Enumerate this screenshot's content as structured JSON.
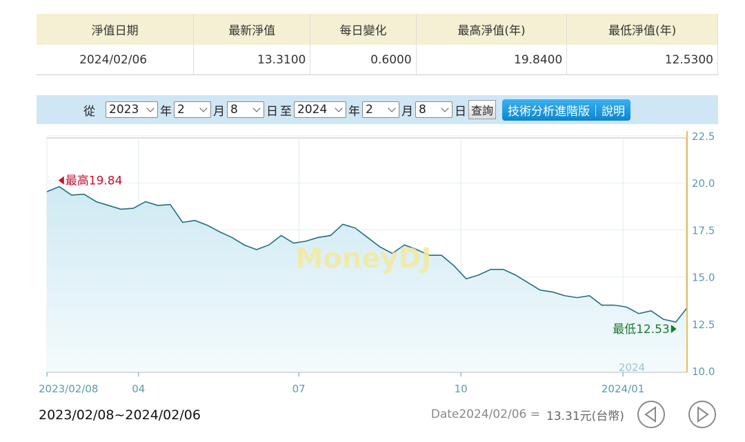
{
  "table": {
    "headers": [
      "淨值日期",
      "最新淨值",
      "每日變化",
      "最高淨值(年)",
      "最低淨值(年)"
    ],
    "row": [
      "2024/02/06",
      "13.3100",
      "0.6000",
      "19.8400",
      "12.5300"
    ]
  },
  "form": {
    "from_label": "從",
    "from_year": "2023",
    "year_label": "年",
    "from_month": "2",
    "month_label": "月",
    "from_day": "8",
    "day_label": "日",
    "to_label": "至",
    "to_year": "2024",
    "to_month": "2",
    "to_day": "8",
    "query": "查詢",
    "advanced": "技術分析進階版｜說明"
  },
  "chart_data": {
    "type": "line",
    "color": "#1f6f80",
    "x": [
      "2023/02/08",
      "2023/02/15",
      "2023/02/22",
      "2023/03/01",
      "2023/03/08",
      "2023/03/15",
      "2023/03/22",
      "2023/03/29",
      "2023/04/05",
      "2023/04/12",
      "2023/04/19",
      "2023/04/26",
      "2023/05/03",
      "2023/05/10",
      "2023/05/17",
      "2023/05/24",
      "2023/05/31",
      "2023/06/07",
      "2023/06/14",
      "2023/06/21",
      "2023/06/28",
      "2023/07/05",
      "2023/07/12",
      "2023/07/19",
      "2023/07/26",
      "2023/08/02",
      "2023/08/09",
      "2023/08/16",
      "2023/08/23",
      "2023/08/30",
      "2023/09/06",
      "2023/09/13",
      "2023/09/20",
      "2023/09/27",
      "2023/10/04",
      "2023/10/11",
      "2023/10/18",
      "2023/10/25",
      "2023/11/01",
      "2023/11/08",
      "2023/11/15",
      "2023/11/22",
      "2023/11/29",
      "2023/12/06",
      "2023/12/13",
      "2023/12/20",
      "2023/12/27",
      "2024/01/03",
      "2024/01/10",
      "2024/01/17",
      "2024/01/24",
      "2024/01/31",
      "2024/02/06"
    ],
    "values": [
      19.53,
      19.8,
      19.35,
      19.4,
      19.0,
      18.8,
      18.6,
      18.65,
      19.0,
      18.8,
      18.85,
      17.9,
      18.0,
      17.75,
      17.4,
      17.1,
      16.7,
      16.45,
      16.7,
      17.2,
      16.8,
      16.9,
      17.1,
      17.2,
      17.8,
      17.6,
      17.1,
      16.6,
      16.25,
      16.7,
      16.45,
      16.15,
      16.15,
      15.6,
      14.9,
      15.1,
      15.4,
      15.4,
      15.1,
      14.7,
      14.3,
      14.2,
      14.0,
      13.9,
      14.0,
      13.5,
      13.5,
      13.4,
      13.05,
      13.2,
      12.75,
      12.6,
      13.31
    ],
    "xlim": [
      "2023/02/08",
      "2024/02/06"
    ],
    "xticks": [
      {
        "value": "2023/02/08",
        "label": "2023/02/08"
      },
      {
        "value": "2023/04",
        "label": "04"
      },
      {
        "value": "2023/07",
        "label": "07"
      },
      {
        "value": "2023/10",
        "label": "10"
      },
      {
        "value": "2024/01",
        "label": "2024/01"
      }
    ],
    "ylim": [
      10,
      22.5
    ],
    "yticks": [
      {
        "value": 10,
        "label": "10.0"
      },
      12.5,
      {
        "value": 15,
        "label": "15.0"
      },
      17.5,
      {
        "value": 20,
        "label": "20.0"
      },
      22.5
    ],
    "grid": true,
    "annotations": [
      {
        "text": "最高19.84",
        "x": "2023/02/13",
        "y": 19.84,
        "color": "#c8102e"
      },
      {
        "text": "最低12.53",
        "x": "2024/02/02",
        "y": 12.53,
        "color": "#1a7a2a"
      }
    ],
    "watermark": "MoneyDJ",
    "year_mark": "2024",
    "range_text": "2023/02/08~2024/02/06",
    "date_text": "Date2024/02/06 =",
    "value_text": "13.31元(台幣)"
  }
}
